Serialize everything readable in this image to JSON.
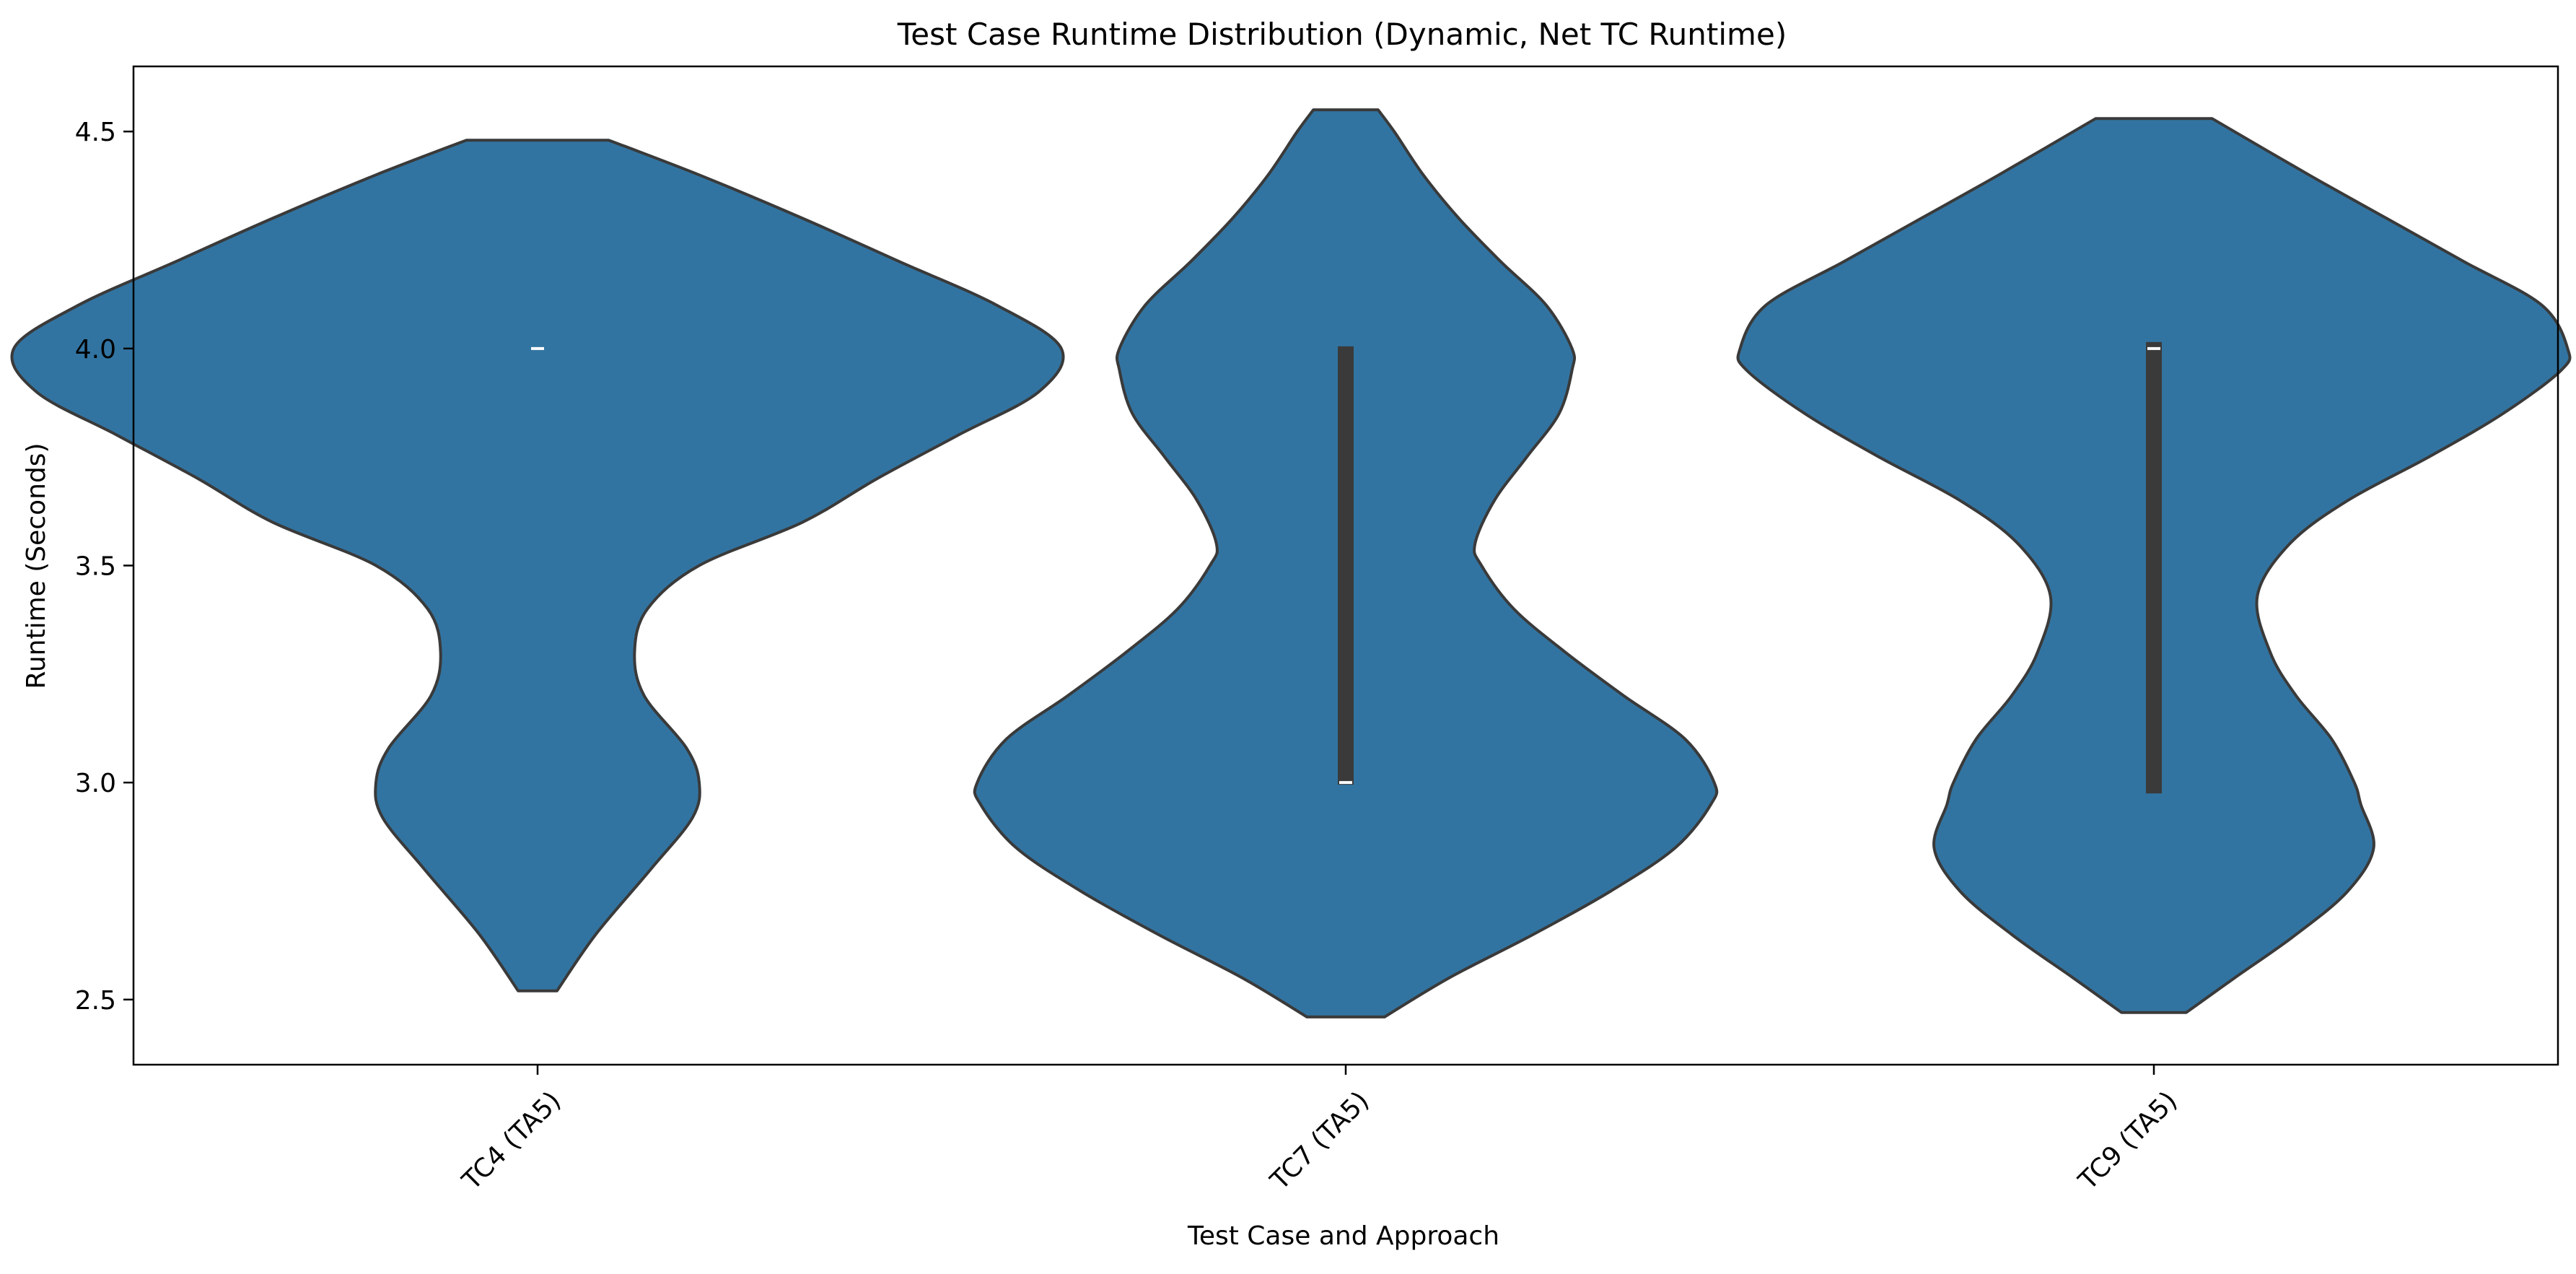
{
  "chart_data": {
    "type": "violin",
    "title": "Test Case Runtime Distribution (Dynamic, Net TC Runtime)",
    "xlabel": "Test Case and Approach",
    "ylabel": "Runtime (Seconds)",
    "ylim": [
      2.35,
      4.65
    ],
    "yticks": [
      2.5,
      3.0,
      3.5,
      4.0,
      4.5
    ],
    "ytick_labels": [
      "2.5",
      "3.0",
      "3.5",
      "4.0",
      "4.5"
    ],
    "grid": false,
    "color": "#3274a1",
    "edge_color": "#3a3a3a",
    "categories": [
      "TC4 (TA5)",
      "TC7 (TA5)",
      "TC9 (TA5)"
    ],
    "violins": [
      {
        "category": "TC4 (TA5)",
        "min": 2.52,
        "max": 4.48,
        "q1": 4.0,
        "median": 4.0,
        "q3": 4.0,
        "density_y": [
          2.52,
          2.65,
          2.8,
          2.92,
          3.0,
          3.08,
          3.2,
          3.3,
          3.4,
          3.5,
          3.6,
          3.7,
          3.8,
          3.9,
          4.0,
          4.1,
          4.2,
          4.3,
          4.4,
          4.48
        ],
        "density_w": [
          0.06,
          0.18,
          0.35,
          0.48,
          0.5,
          0.46,
          0.33,
          0.3,
          0.34,
          0.5,
          0.82,
          1.05,
          1.3,
          1.55,
          1.62,
          1.42,
          1.12,
          0.82,
          0.5,
          0.22
        ]
      },
      {
        "category": "TC7 (TA5)",
        "min": 2.46,
        "max": 4.55,
        "q1": 3.0,
        "median": 3.0,
        "q3": 4.0,
        "density_y": [
          2.46,
          2.55,
          2.65,
          2.75,
          2.85,
          2.95,
          3.0,
          3.1,
          3.2,
          3.3,
          3.4,
          3.5,
          3.55,
          3.65,
          3.75,
          3.85,
          3.95,
          4.0,
          4.1,
          4.2,
          4.3,
          4.4,
          4.5,
          4.55
        ],
        "density_w": [
          0.12,
          0.32,
          0.58,
          0.82,
          1.02,
          1.13,
          1.14,
          1.05,
          0.86,
          0.68,
          0.52,
          0.42,
          0.4,
          0.46,
          0.56,
          0.66,
          0.7,
          0.7,
          0.62,
          0.48,
          0.35,
          0.24,
          0.15,
          0.1
        ]
      },
      {
        "category": "TC9 (TA5)",
        "min": 2.47,
        "max": 4.53,
        "q1": 2.98,
        "median": 4.0,
        "q3": 4.01,
        "density_y": [
          2.47,
          2.55,
          2.65,
          2.75,
          2.85,
          2.95,
          3.0,
          3.1,
          3.2,
          3.3,
          3.43,
          3.55,
          3.65,
          3.75,
          3.85,
          3.95,
          4.0,
          4.1,
          4.2,
          4.3,
          4.4,
          4.53
        ],
        "density_w": [
          0.1,
          0.25,
          0.44,
          0.6,
          0.68,
          0.64,
          0.62,
          0.55,
          0.44,
          0.36,
          0.32,
          0.42,
          0.6,
          0.85,
          1.08,
          1.26,
          1.28,
          1.2,
          0.96,
          0.72,
          0.48,
          0.18
        ]
      }
    ]
  }
}
